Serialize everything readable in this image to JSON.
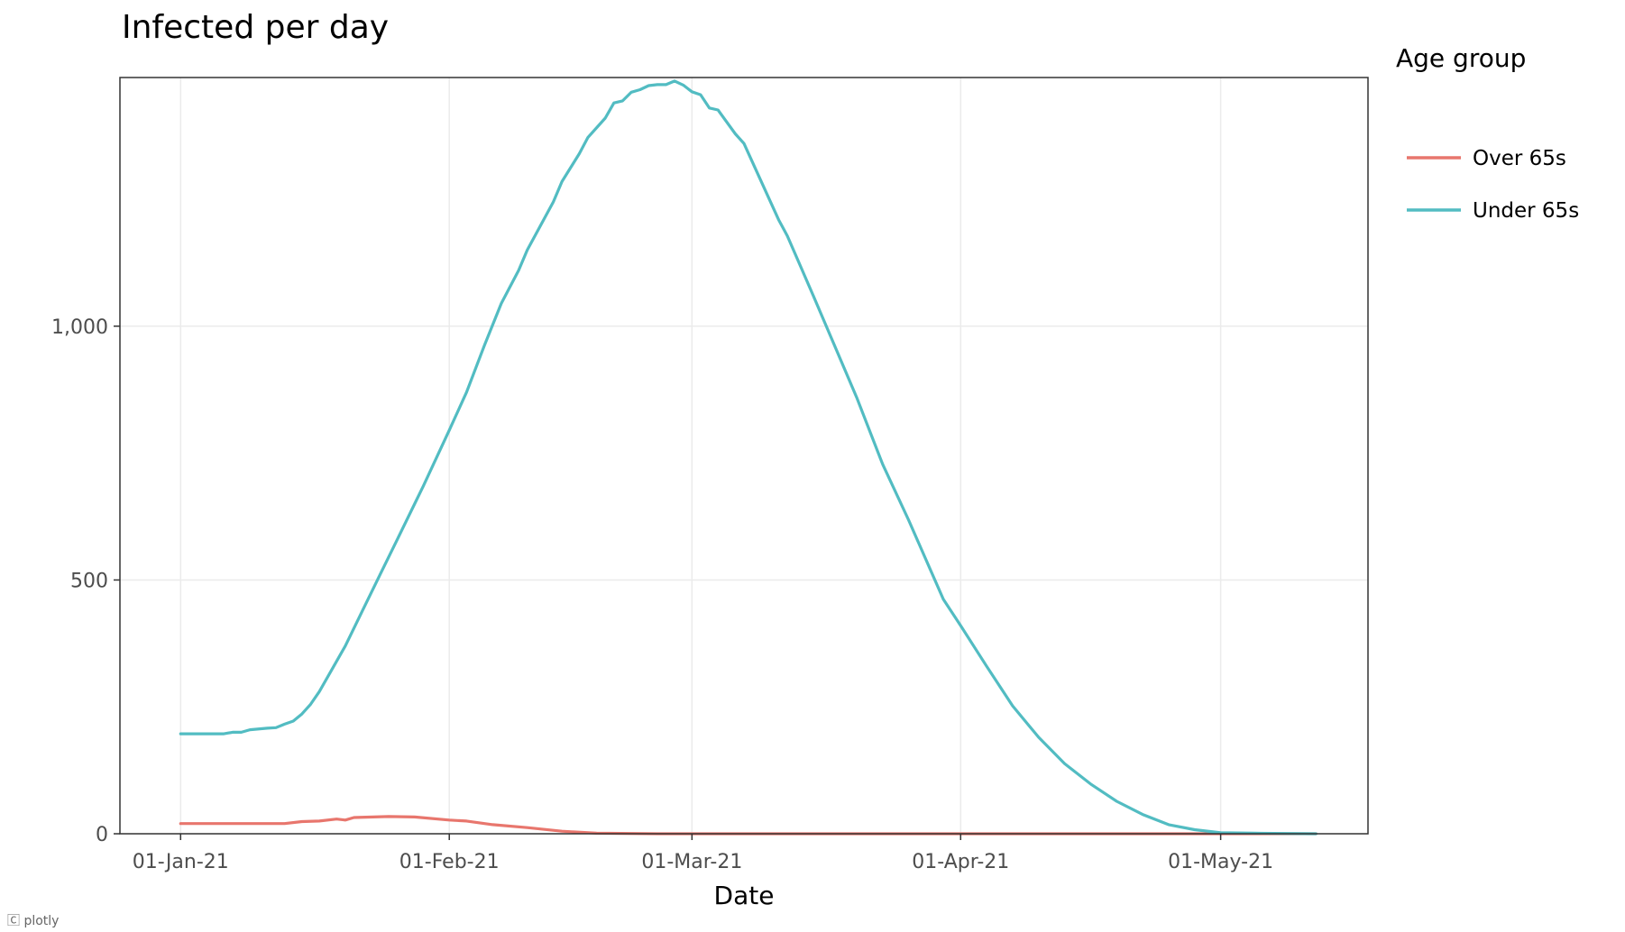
{
  "chart_data": {
    "type": "line",
    "title": "Infected per day",
    "xlabel": "Date",
    "ylabel": "",
    "x_type": "date",
    "xlim": [
      "2020-12-25",
      "2021-05-18"
    ],
    "ylim": [
      0,
      1490
    ],
    "x_ticks": [
      {
        "value": "2021-01-01",
        "label": "01-Jan-21"
      },
      {
        "value": "2021-02-01",
        "label": "01-Feb-21"
      },
      {
        "value": "2021-03-01",
        "label": "01-Mar-21"
      },
      {
        "value": "2021-04-01",
        "label": "01-Apr-21"
      },
      {
        "value": "2021-05-01",
        "label": "01-May-21"
      }
    ],
    "y_ticks": [
      {
        "value": 0,
        "label": "0"
      },
      {
        "value": 500,
        "label": "500"
      },
      {
        "value": 1000,
        "label": "1,000"
      }
    ],
    "grid": true,
    "legend": {
      "title": "Age group",
      "position": "right"
    },
    "series": [
      {
        "name": "Over 65s",
        "color": "#E8766D",
        "points": [
          [
            "2021-01-01",
            20
          ],
          [
            "2021-01-08",
            20
          ],
          [
            "2021-01-13",
            20
          ],
          [
            "2021-01-15",
            24
          ],
          [
            "2021-01-17",
            25
          ],
          [
            "2021-01-19",
            29
          ],
          [
            "2021-01-20",
            27
          ],
          [
            "2021-01-21",
            32
          ],
          [
            "2021-01-25",
            34
          ],
          [
            "2021-01-28",
            33
          ],
          [
            "2021-02-01",
            27
          ],
          [
            "2021-02-03",
            25
          ],
          [
            "2021-02-06",
            18
          ],
          [
            "2021-02-10",
            12
          ],
          [
            "2021-02-14",
            5
          ],
          [
            "2021-02-18",
            1
          ],
          [
            "2021-02-25",
            0
          ],
          [
            "2021-05-12",
            0
          ]
        ]
      },
      {
        "name": "Under 65s",
        "color": "#52BCC2",
        "points": [
          [
            "2021-01-01",
            197
          ],
          [
            "2021-01-04",
            197
          ],
          [
            "2021-01-06",
            197
          ],
          [
            "2021-01-07",
            200
          ],
          [
            "2021-01-08",
            200
          ],
          [
            "2021-01-09",
            205
          ],
          [
            "2021-01-11",
            208
          ],
          [
            "2021-01-12",
            209
          ],
          [
            "2021-01-13",
            216
          ],
          [
            "2021-01-14",
            222
          ],
          [
            "2021-01-15",
            236
          ],
          [
            "2021-01-16",
            255
          ],
          [
            "2021-01-17",
            280
          ],
          [
            "2021-01-19",
            340
          ],
          [
            "2021-01-20",
            370
          ],
          [
            "2021-01-22",
            440
          ],
          [
            "2021-01-24",
            510
          ],
          [
            "2021-01-26",
            580
          ],
          [
            "2021-01-28",
            650
          ],
          [
            "2021-01-29",
            685
          ],
          [
            "2021-02-01",
            795
          ],
          [
            "2021-02-03",
            870
          ],
          [
            "2021-02-05",
            960
          ],
          [
            "2021-02-07",
            1045
          ],
          [
            "2021-02-09",
            1110
          ],
          [
            "2021-02-10",
            1150
          ],
          [
            "2021-02-13",
            1245
          ],
          [
            "2021-02-14",
            1285
          ],
          [
            "2021-02-16",
            1340
          ],
          [
            "2021-02-17",
            1372
          ],
          [
            "2021-02-19",
            1410
          ],
          [
            "2021-02-20",
            1440
          ],
          [
            "2021-02-21",
            1444
          ],
          [
            "2021-02-22",
            1461
          ],
          [
            "2021-02-23",
            1466
          ],
          [
            "2021-02-24",
            1474
          ],
          [
            "2021-02-25",
            1476
          ],
          [
            "2021-02-26",
            1476
          ],
          [
            "2021-02-27",
            1483
          ],
          [
            "2021-02-28",
            1475
          ],
          [
            "2021-03-01",
            1462
          ],
          [
            "2021-03-02",
            1456
          ],
          [
            "2021-03-03",
            1430
          ],
          [
            "2021-03-04",
            1426
          ],
          [
            "2021-03-06",
            1379
          ],
          [
            "2021-03-07",
            1360
          ],
          [
            "2021-03-11",
            1210
          ],
          [
            "2021-03-12",
            1178
          ],
          [
            "2021-03-15",
            1060
          ],
          [
            "2021-03-20",
            860
          ],
          [
            "2021-03-23",
            728
          ],
          [
            "2021-03-26",
            618
          ],
          [
            "2021-03-30",
            462
          ],
          [
            "2021-04-01",
            410
          ],
          [
            "2021-04-04",
            330
          ],
          [
            "2021-04-07",
            252
          ],
          [
            "2021-04-10",
            190
          ],
          [
            "2021-04-13",
            138
          ],
          [
            "2021-04-16",
            98
          ],
          [
            "2021-04-19",
            64
          ],
          [
            "2021-04-22",
            38
          ],
          [
            "2021-04-25",
            18
          ],
          [
            "2021-04-28",
            8
          ],
          [
            "2021-05-01",
            2
          ],
          [
            "2021-05-05",
            1
          ],
          [
            "2021-05-12",
            0
          ]
        ]
      }
    ]
  },
  "footer": {
    "note": "🄲 plotly"
  }
}
